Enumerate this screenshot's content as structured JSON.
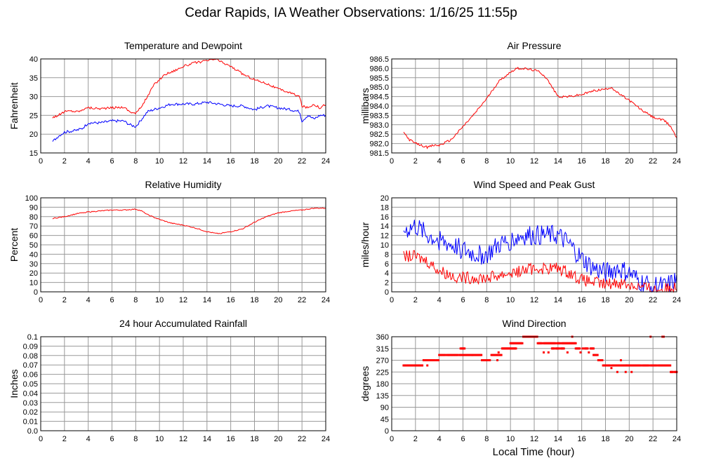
{
  "page": {
    "title": "Cedar Rapids, IA Weather Observations: 1/16/25 11:55p",
    "xaxis_label": "Local Time (hour)"
  },
  "chart_data": [
    {
      "id": "temp",
      "type": "line",
      "title": "Temperature and Dewpoint",
      "ylabel": "Fahrenheit",
      "xlim": [
        0,
        24
      ],
      "ylim": [
        15,
        40
      ],
      "yticks": [
        15,
        20,
        25,
        30,
        35,
        40
      ],
      "ytick_decimals": 0,
      "xticks": [
        2,
        4,
        6,
        8,
        10,
        12,
        14,
        16,
        18,
        20,
        22,
        24
      ],
      "series": [
        {
          "color": "#ff0000",
          "jitter": 0.3,
          "points": [
            [
              1,
              24.5
            ],
            [
              1.5,
              25
            ],
            [
              2,
              26
            ],
            [
              2.5,
              26.2
            ],
            [
              3,
              26.0
            ],
            [
              3.5,
              26.3
            ],
            [
              3.8,
              27.2
            ],
            [
              4,
              27.0
            ],
            [
              5,
              26.8
            ],
            [
              6,
              27.0
            ],
            [
              7,
              27.2
            ],
            [
              7.5,
              26.0
            ],
            [
              8,
              25.5
            ],
            [
              8.4,
              27.0
            ],
            [
              9,
              30
            ],
            [
              9.5,
              33
            ],
            [
              10,
              34.5
            ],
            [
              10.5,
              36
            ],
            [
              11,
              36.5
            ],
            [
              12,
              38
            ],
            [
              13,
              39
            ],
            [
              14,
              39.5
            ],
            [
              14.8,
              40
            ],
            [
              15,
              39.5
            ],
            [
              16,
              38
            ],
            [
              17,
              36
            ],
            [
              18,
              34.5
            ],
            [
              19,
              33.5
            ],
            [
              20,
              32
            ],
            [
              21,
              31
            ],
            [
              21.8,
              30
            ],
            [
              22,
              27.5
            ],
            [
              22.5,
              27
            ],
            [
              23,
              28
            ],
            [
              23.5,
              27
            ],
            [
              24,
              28
            ]
          ]
        },
        {
          "color": "#0000ff",
          "jitter": 0.35,
          "points": [
            [
              1,
              18
            ],
            [
              1.5,
              19.5
            ],
            [
              2,
              20.5
            ],
            [
              3,
              21
            ],
            [
              3.5,
              21.5
            ],
            [
              4,
              23
            ],
            [
              5,
              23
            ],
            [
              6,
              23.5
            ],
            [
              7,
              23.5
            ],
            [
              7.5,
              22.5
            ],
            [
              8,
              22
            ],
            [
              8.5,
              24
            ],
            [
              9,
              26
            ],
            [
              10,
              27
            ],
            [
              11,
              28
            ],
            [
              12,
              28
            ],
            [
              13,
              28
            ],
            [
              14,
              28.5
            ],
            [
              15,
              28
            ],
            [
              16,
              27.5
            ],
            [
              17,
              27.5
            ],
            [
              18,
              26.5
            ],
            [
              19,
              27.5
            ],
            [
              20,
              27
            ],
            [
              21,
              26.5
            ],
            [
              21.8,
              26
            ],
            [
              22,
              23.5
            ],
            [
              22.5,
              25
            ],
            [
              23,
              24
            ],
            [
              23.5,
              25
            ],
            [
              24,
              25
            ]
          ]
        }
      ]
    },
    {
      "id": "pressure",
      "type": "line",
      "title": "Air Pressure",
      "ylabel": "millibars",
      "xlim": [
        0,
        24
      ],
      "ylim": [
        981.5,
        986.5
      ],
      "yticks": [
        981.5,
        982.0,
        982.5,
        983.0,
        983.5,
        984.0,
        984.5,
        985.0,
        985.5,
        986.0,
        986.5
      ],
      "ytick_decimals": 1,
      "xticks": [
        2,
        4,
        6,
        8,
        10,
        12,
        14,
        16,
        18,
        20,
        22,
        24
      ],
      "series": [
        {
          "color": "#ff0000",
          "jitter": 0.06,
          "points": [
            [
              1,
              982.6
            ],
            [
              1.5,
              982.2
            ],
            [
              2,
              982.0
            ],
            [
              2.5,
              981.9
            ],
            [
              3,
              981.8
            ],
            [
              3.5,
              981.9
            ],
            [
              4,
              981.9
            ],
            [
              5,
              982.2
            ],
            [
              6,
              982.9
            ],
            [
              7,
              983.6
            ],
            [
              8,
              984.4
            ],
            [
              9,
              985.3
            ],
            [
              10,
              985.8
            ],
            [
              10.5,
              986.0
            ],
            [
              11,
              986.0
            ],
            [
              12,
              985.9
            ],
            [
              12.5,
              985.8
            ],
            [
              13,
              985.5
            ],
            [
              13.5,
              985.0
            ],
            [
              14,
              984.5
            ],
            [
              15,
              984.5
            ],
            [
              16,
              984.6
            ],
            [
              17,
              984.8
            ],
            [
              18,
              984.9
            ],
            [
              18.5,
              985.0
            ],
            [
              19,
              984.7
            ],
            [
              20,
              984.3
            ],
            [
              21,
              983.8
            ],
            [
              22,
              983.4
            ],
            [
              23,
              983.2
            ],
            [
              23.5,
              982.9
            ],
            [
              24,
              982.3
            ]
          ]
        }
      ]
    },
    {
      "id": "rh",
      "type": "line",
      "title": "Relative Humidity",
      "ylabel": "Percent",
      "xlim": [
        0,
        24
      ],
      "ylim": [
        0,
        100
      ],
      "yticks": [
        0,
        10,
        20,
        30,
        40,
        50,
        60,
        70,
        80,
        90,
        100
      ],
      "ytick_decimals": 0,
      "xticks": [
        2,
        4,
        6,
        8,
        10,
        12,
        14,
        16,
        18,
        20,
        22,
        24
      ],
      "series": [
        {
          "color": "#ff0000",
          "jitter": 0.5,
          "points": [
            [
              1,
              78
            ],
            [
              2,
              80
            ],
            [
              3,
              83
            ],
            [
              4,
              85
            ],
            [
              5,
              86
            ],
            [
              6,
              87
            ],
            [
              7,
              87
            ],
            [
              8,
              88
            ],
            [
              8.5,
              86
            ],
            [
              9,
              82
            ],
            [
              10,
              77
            ],
            [
              11,
              73
            ],
            [
              12,
              71
            ],
            [
              13,
              68
            ],
            [
              14,
              64
            ],
            [
              14.8,
              62
            ],
            [
              15,
              62
            ],
            [
              16,
              64
            ],
            [
              17,
              67
            ],
            [
              18,
              74
            ],
            [
              19,
              80
            ],
            [
              20,
              84
            ],
            [
              21,
              86
            ],
            [
              22,
              87
            ],
            [
              23,
              89
            ],
            [
              24,
              89
            ]
          ]
        }
      ]
    },
    {
      "id": "wind",
      "type": "line",
      "title": "Wind Speed and Peak Gust",
      "ylabel": "miles/hour",
      "xlim": [
        0,
        24
      ],
      "ylim": [
        0,
        20
      ],
      "yticks": [
        0,
        2,
        4,
        6,
        8,
        10,
        12,
        14,
        16,
        18,
        20
      ],
      "ytick_decimals": 0,
      "xticks": [
        2,
        4,
        6,
        8,
        10,
        12,
        14,
        16,
        18,
        20,
        22,
        24
      ],
      "series": [
        {
          "color": "#0000ff",
          "jitter": 2.2,
          "floor": 0,
          "points": [
            [
              1,
              13
            ],
            [
              1.5,
              13.5
            ],
            [
              2,
              14
            ],
            [
              3,
              12
            ],
            [
              4,
              11
            ],
            [
              5,
              10
            ],
            [
              6,
              9
            ],
            [
              7,
              8
            ],
            [
              8,
              8
            ],
            [
              9,
              10
            ],
            [
              10,
              11
            ],
            [
              11,
              12
            ],
            [
              12,
              12
            ],
            [
              13,
              12
            ],
            [
              14,
              12
            ],
            [
              15,
              10
            ],
            [
              16,
              7
            ],
            [
              17,
              5
            ],
            [
              18,
              4
            ],
            [
              19,
              5
            ],
            [
              20,
              4
            ],
            [
              21,
              2
            ],
            [
              22,
              1.5
            ],
            [
              23,
              1
            ],
            [
              24,
              2.5
            ]
          ]
        },
        {
          "color": "#ff0000",
          "jitter": 1.3,
          "floor": 0,
          "points": [
            [
              1,
              7.5
            ],
            [
              2,
              7.5
            ],
            [
              3,
              6.5
            ],
            [
              4,
              4.5
            ],
            [
              5,
              3.5
            ],
            [
              6,
              3
            ],
            [
              7,
              3
            ],
            [
              8,
              3
            ],
            [
              9,
              3.5
            ],
            [
              10,
              4
            ],
            [
              11,
              4.5
            ],
            [
              12,
              5
            ],
            [
              13,
              5
            ],
            [
              14,
              5
            ],
            [
              15,
              4
            ],
            [
              16,
              2.5
            ],
            [
              17,
              2
            ],
            [
              18,
              1.5
            ],
            [
              19,
              2
            ],
            [
              20,
              1.5
            ],
            [
              21,
              1
            ],
            [
              22,
              0.5
            ],
            [
              23,
              0.5
            ],
            [
              24,
              1
            ]
          ]
        }
      ]
    },
    {
      "id": "rain",
      "type": "line",
      "title": "24 hour Accumulated Rainfall",
      "ylabel": "Inches",
      "xlim": [
        0,
        24
      ],
      "ylim": [
        0,
        0.1
      ],
      "yticks": [
        0.0,
        0.01,
        0.02,
        0.03,
        0.04,
        0.05,
        0.06,
        0.07,
        0.08,
        0.09,
        0.1
      ],
      "ytick_decimals": 2,
      "ytick_strings": [
        "0.0",
        "0.01",
        "0.02",
        "0.03",
        "0.04",
        "0.05",
        "0.06",
        "0.07",
        "0.08",
        "0.09",
        "0.1"
      ],
      "xticks": [
        2,
        4,
        6,
        8,
        10,
        12,
        14,
        16,
        18,
        20,
        22,
        24
      ],
      "series": [
        {
          "color": "#ff0000",
          "jitter": 0,
          "points": [
            [
              1,
              0
            ],
            [
              24,
              0
            ]
          ]
        }
      ]
    },
    {
      "id": "dir",
      "type": "scatter",
      "title": "Wind Direction",
      "ylabel": "degrees",
      "xlim": [
        0,
        24
      ],
      "ylim": [
        0,
        360
      ],
      "yticks": [
        0,
        45,
        90,
        135,
        180,
        225,
        270,
        315,
        360
      ],
      "ytick_decimals": 0,
      "xticks": [
        2,
        4,
        6,
        8,
        10,
        12,
        14,
        16,
        18,
        20,
        22,
        24
      ],
      "series": [
        {
          "color": "#ff0000",
          "segments": [
            [
              1,
              2.6,
              250
            ],
            [
              2.6,
              3.1,
              270
            ],
            [
              3.1,
              4.0,
              270
            ],
            [
              4.0,
              4.8,
              290
            ],
            [
              4.8,
              6.8,
              290
            ],
            [
              5.8,
              6.2,
              315
            ],
            [
              6.8,
              7.6,
              290
            ],
            [
              7.6,
              8.4,
              270
            ],
            [
              8.4,
              9.3,
              290
            ],
            [
              9.3,
              10.5,
              315
            ],
            [
              10.0,
              11.0,
              335
            ],
            [
              11.0,
              12.3,
              360
            ],
            [
              12.3,
              14.0,
              335
            ],
            [
              14.0,
              15.5,
              335
            ],
            [
              13.5,
              14.5,
              315
            ],
            [
              15.5,
              17.0,
              315
            ],
            [
              17.0,
              17.4,
              290
            ],
            [
              17.4,
              17.8,
              270
            ],
            [
              17.8,
              19.8,
              250
            ],
            [
              19.8,
              23.5,
              250
            ],
            [
              23.5,
              24,
              225
            ]
          ],
          "extras": [
            [
              3.0,
              250
            ],
            [
              2.0,
              250
            ],
            [
              8.9,
              270
            ],
            [
              9.0,
              300
            ],
            [
              19.0,
              225
            ],
            [
              19.3,
              270
            ],
            [
              19.7,
              225
            ],
            [
              21.8,
              360
            ],
            [
              22.8,
              360
            ],
            [
              22.9,
              360
            ],
            [
              12.8,
              300
            ],
            [
              13.2,
              300
            ],
            [
              14.8,
              300
            ],
            [
              15.2,
              360
            ],
            [
              15.9,
              300
            ],
            [
              16.6,
              300
            ],
            [
              18.5,
              240
            ],
            [
              20.2,
              225
            ]
          ]
        }
      ]
    }
  ]
}
